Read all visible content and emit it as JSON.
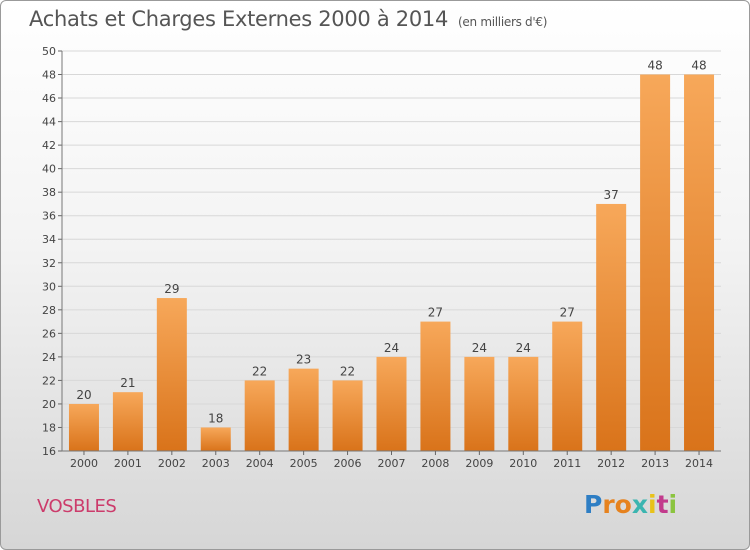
{
  "title": "Achats et Charges Externes 2000 à 2014",
  "subtitle": "(en milliers d'€)",
  "commune": "VOSBLES",
  "logo": {
    "text": "Proxiti",
    "colors": [
      "#2e7ec4",
      "#e6821e",
      "#e6821e",
      "#3bb5b0",
      "#e8c21a",
      "#c23a8c",
      "#8bc43f"
    ]
  },
  "colors": {
    "bar_top": "#f7a85a",
    "bar_bottom": "#d9731a",
    "title": "#555555",
    "commune": "#cc3b6b"
  },
  "chart_data": {
    "type": "bar",
    "title": "Achats et Charges Externes 2000 à 2014",
    "subtitle": "(en milliers d'€)",
    "categories": [
      "2000",
      "2001",
      "2002",
      "2003",
      "2004",
      "2005",
      "2006",
      "2007",
      "2008",
      "2009",
      "2010",
      "2011",
      "2012",
      "2013",
      "2014"
    ],
    "values": [
      20,
      21,
      29,
      18,
      22,
      23,
      22,
      24,
      27,
      24,
      24,
      27,
      37,
      48,
      48
    ],
    "ylim": [
      16,
      50
    ],
    "yticks": [
      16,
      18,
      20,
      22,
      24,
      26,
      28,
      30,
      32,
      34,
      36,
      38,
      40,
      42,
      44,
      46,
      48,
      50
    ],
    "grid": true,
    "xlabel": "",
    "ylabel": ""
  }
}
